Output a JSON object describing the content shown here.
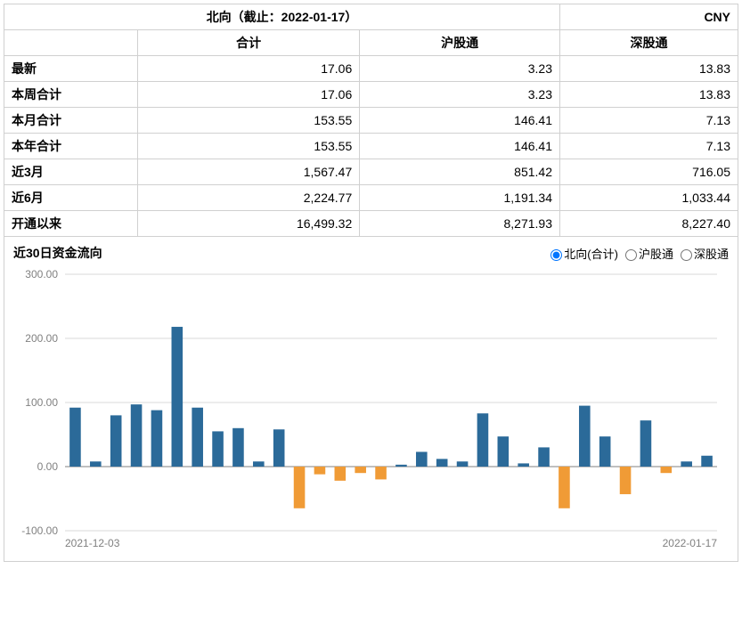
{
  "header": {
    "title": "北向（截止：2022-01-17）",
    "currency": "CNY"
  },
  "table": {
    "columns": [
      "",
      "合计",
      "沪股通",
      "深股通"
    ],
    "rows": [
      {
        "label": "最新",
        "total": "17.06",
        "sh": "3.23",
        "sz": "13.83"
      },
      {
        "label": "本周合计",
        "total": "17.06",
        "sh": "3.23",
        "sz": "13.83"
      },
      {
        "label": "本月合计",
        "total": "153.55",
        "sh": "146.41",
        "sz": "7.13"
      },
      {
        "label": "本年合计",
        "total": "153.55",
        "sh": "146.41",
        "sz": "7.13"
      },
      {
        "label": "近3月",
        "total": "1,567.47",
        "sh": "851.42",
        "sz": "716.05"
      },
      {
        "label": "近6月",
        "total": "2,224.77",
        "sh": "1,191.34",
        "sz": "1,033.44"
      },
      {
        "label": "开通以来",
        "total": "16,499.32",
        "sh": "8,271.93",
        "sz": "8,227.40"
      }
    ]
  },
  "chart": {
    "title": "近30日资金流向",
    "radios": [
      {
        "label": "北向(合计)",
        "checked": true
      },
      {
        "label": "沪股通",
        "checked": false
      },
      {
        "label": "深股通",
        "checked": false
      }
    ],
    "type": "bar",
    "ylim": [
      -100,
      300
    ],
    "ytick_step": 100,
    "ytick_decimals": 2,
    "grid_color": "#d9d9d9",
    "axis_color": "#808080",
    "zero_line_color": "#808080",
    "label_color": "#808080",
    "label_fontsize": 12,
    "positive_color": "#2b6a99",
    "negative_color": "#f09b36",
    "bar_width_ratio": 0.55,
    "background_color": "#ffffff",
    "x_start_label": "2021-12-03",
    "x_end_label": "2022-01-17",
    "values": [
      92,
      8,
      80,
      97,
      88,
      218,
      92,
      55,
      60,
      8,
      58,
      -65,
      -12,
      -22,
      -10,
      -20,
      3,
      23,
      12,
      8,
      83,
      47,
      5,
      30,
      -65,
      95,
      47,
      -43,
      72,
      -10,
      8,
      17
    ]
  }
}
